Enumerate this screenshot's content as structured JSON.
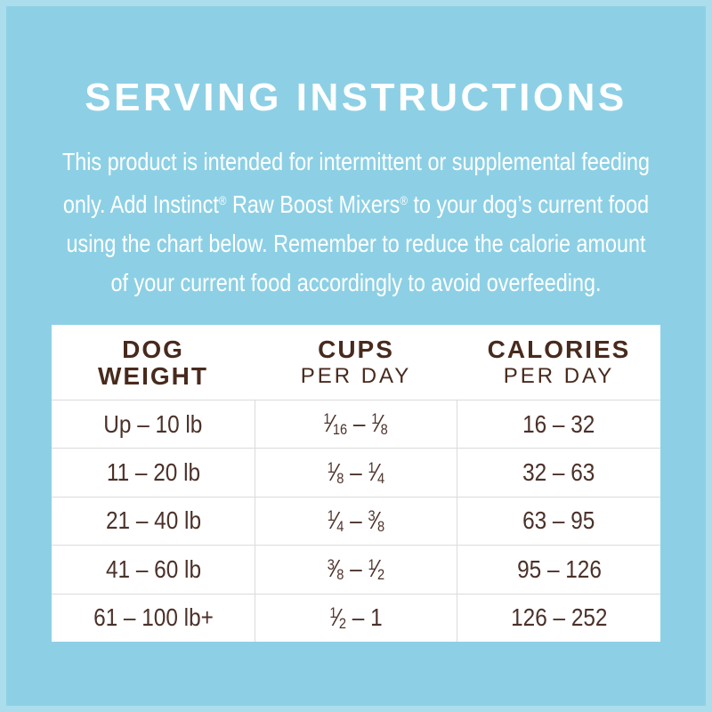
{
  "page": {
    "title": "SERVING INSTRUCTIONS",
    "intro_lines": [
      "This product is intended for intermittent or supplemental feeding",
      "only. Add Instinct® Raw Boost Mixers® to your dog’s current food",
      "using the chart below. Remember to reduce the calorie amount",
      "of your current food accordingly to avoid overfeeding."
    ]
  },
  "colors": {
    "background": "#8dd0e5",
    "panel": "#ffffff",
    "heading_text": "#ffffff",
    "table_header_text": "#482a1d",
    "table_body_text": "#4b3129",
    "grid_line": "#dbdbdb"
  },
  "chart_data": {
    "type": "table",
    "title": "Serving Instructions",
    "columns": [
      "Dog Weight",
      "Cups Per Day",
      "Calories Per Day"
    ],
    "rows": [
      [
        "Up – 10 lb",
        "1/16 – 1/8",
        "16 – 32"
      ],
      [
        "11 – 20 lb",
        "1/8 – 1/4",
        "32 – 63"
      ],
      [
        "21 – 40 lb",
        "1/4 – 3/8",
        "63 – 95"
      ],
      [
        "41 – 60 lb",
        "3/8 – 1/2",
        "95 – 126"
      ],
      [
        "61 – 100 lb+",
        "1/2 – 1",
        "126 – 252"
      ]
    ]
  },
  "table": {
    "columns": [
      {
        "title": "DOG\nWEIGHT",
        "subtitle": ""
      },
      {
        "title": "CUPS",
        "subtitle": "PER DAY"
      },
      {
        "title": "CALORIES",
        "subtitle": "PER DAY"
      }
    ],
    "rows": [
      {
        "weight": "Up – 10 lb",
        "cups": "1/16 – 1/8",
        "calories": "16 – 32"
      },
      {
        "weight": "11 – 20 lb",
        "cups": "1/8 – 1/4",
        "calories": "32 – 63"
      },
      {
        "weight": "21 – 40 lb",
        "cups": "1/4 – 3/8",
        "calories": "63 – 95"
      },
      {
        "weight": "41 – 60 lb",
        "cups": "3/8 – 1/2",
        "calories": "95 – 126"
      },
      {
        "weight": "61 – 100 lb+",
        "cups": "1/2 – 1",
        "calories": "126 – 252"
      }
    ]
  }
}
